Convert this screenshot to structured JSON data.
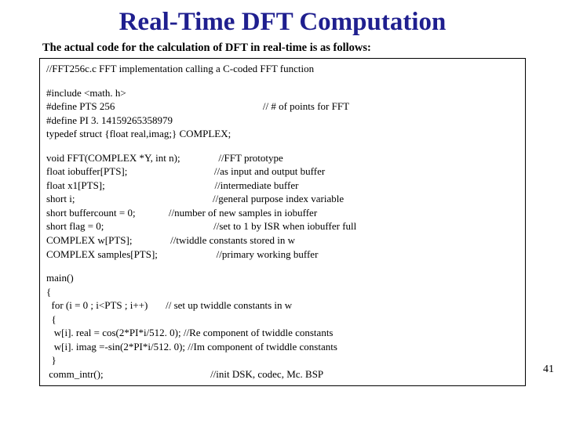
{
  "title": "Real-Time DFT Computation",
  "subtitle": "The actual code for the calculation of DFT in real-time is as follows:",
  "page_number": "41",
  "code": {
    "l01": "//FFT256c.c FFT implementation calling a C-coded FFT function",
    "l02": "#include <math. h>",
    "l03": "#define PTS 256                                                          // # of points for FFT",
    "l04": "#define PI 3. 14159265358979",
    "l05": "typedef struct {float real,imag;} COMPLEX;",
    "l06": "void FFT(COMPLEX *Y, int n);               //FFT prototype",
    "l07": "float iobuffer[PTS];                                  //as input and output buffer",
    "l08": "float x1[PTS];                                           //intermediate buffer",
    "l09": "short i;                                                      //general purpose index variable",
    "l10": "short buffercount = 0;             //number of new samples in iobuffer",
    "l11": "short flag = 0;                                           //set to 1 by ISR when iobuffer full",
    "l12": "COMPLEX w[PTS];               //twiddle constants stored in w",
    "l13": "COMPLEX samples[PTS];                       //primary working buffer",
    "l14": "main()",
    "l15": "{",
    "l16": "  for (i = 0 ; i<PTS ; i++)       // set up twiddle constants in w",
    "l17": "  {",
    "l18": "   w[i]. real = cos(2*PI*i/512. 0); //Re component of twiddle constants",
    "l19": "   w[i]. imag =-sin(2*PI*i/512. 0); //Im component of twiddle constants",
    "l20": "  }",
    "l21": " comm_intr();                                          //init DSK, codec, Mc. BSP"
  }
}
